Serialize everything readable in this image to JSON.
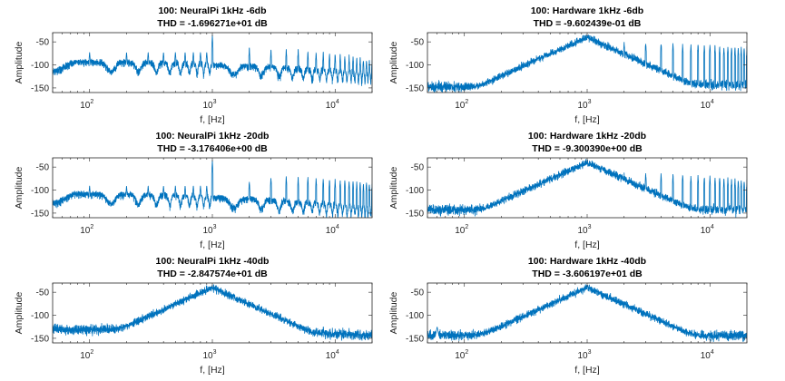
{
  "figure": {
    "background": "#ffffff",
    "trace_color": "#0072bd",
    "axis_color": "#262626"
  },
  "chart_data": [
    {
      "type": "line",
      "title_line1": "100: NeuralPi 1kHz -6db",
      "title_line2": "THD = -1.696271e+01 dB",
      "xlabel": "f, [Hz]",
      "ylabel": "Amplitude",
      "xscale": "log",
      "xlim": [
        50,
        20000
      ],
      "ylim": [
        -160,
        -30
      ],
      "xticks": [
        {
          "label_base": "10",
          "label_exp": "2",
          "value": 100
        },
        {
          "label_base": "10",
          "label_exp": "3",
          "value": 1000
        },
        {
          "label_base": "10",
          "label_exp": "4",
          "value": 10000
        }
      ],
      "yticks": [
        -50,
        -100,
        -150
      ],
      "grid": false,
      "series": [
        {
          "noise_floor_dB": -95,
          "noise_floor_high_freq_dB": -120,
          "floor_shape": "comb",
          "fundamental_hz": 1000,
          "fundamental_dB": -35,
          "harmonics_dB": [
            -62,
            -66,
            -65,
            -68,
            -70,
            -72,
            -72,
            -74,
            -76,
            -78,
            -80,
            -80,
            -82,
            -84,
            -84,
            -86,
            -88,
            -90,
            -90
          ],
          "subharmonic_peaks_dB": -72
        }
      ]
    },
    {
      "type": "line",
      "title_line1": "100: Hardware 1kHz -6db",
      "title_line2": "THD = -9.602439e-01 dB",
      "xlabel": "f, [Hz]",
      "ylabel": "Amplitude",
      "xscale": "log",
      "xlim": [
        50,
        20000
      ],
      "ylim": [
        -160,
        -30
      ],
      "xticks": [
        {
          "label_base": "10",
          "label_exp": "2",
          "value": 100
        },
        {
          "label_base": "10",
          "label_exp": "3",
          "value": 1000
        },
        {
          "label_base": "10",
          "label_exp": "4",
          "value": 10000
        }
      ],
      "yticks": [
        -50,
        -100,
        -150
      ],
      "grid": false,
      "series": [
        {
          "noise_floor_dB": -145,
          "noise_floor_high_freq_dB": -140,
          "floor_shape": "noise",
          "fundamental_hz": 1000,
          "fundamental_dB": -35,
          "harmonics_dB": [
            -50,
            -50,
            -52,
            -52,
            -54,
            -55,
            -55,
            -56,
            -56,
            -58,
            -58,
            -60,
            -60,
            -60,
            -62,
            -62,
            -62,
            -64,
            -64
          ],
          "subharmonic_peaks_dB": null
        }
      ]
    },
    {
      "type": "line",
      "title_line1": "100: NeuralPi 1kHz -20db",
      "title_line2": "THD = -3.176406e+00 dB",
      "xlabel": "f, [Hz]",
      "ylabel": "Amplitude",
      "xscale": "log",
      "xlim": [
        50,
        20000
      ],
      "ylim": [
        -160,
        -30
      ],
      "xticks": [
        {
          "label_base": "10",
          "label_exp": "2",
          "value": 100
        },
        {
          "label_base": "10",
          "label_exp": "3",
          "value": 1000
        },
        {
          "label_base": "10",
          "label_exp": "4",
          "value": 10000
        }
      ],
      "yticks": [
        -50,
        -100,
        -150
      ],
      "grid": false,
      "series": [
        {
          "noise_floor_dB": -110,
          "noise_floor_high_freq_dB": -140,
          "floor_shape": "comb",
          "fundamental_hz": 1000,
          "fundamental_dB": -35,
          "harmonics_dB": [
            -80,
            -72,
            -70,
            -72,
            -72,
            -74,
            -74,
            -76,
            -76,
            -78,
            -78,
            -80,
            -80,
            -82,
            -82,
            -84,
            -84,
            -86,
            -86
          ],
          "subharmonic_peaks_dB": -90
        }
      ]
    },
    {
      "type": "line",
      "title_line1": "100: Hardware 1kHz -20db",
      "title_line2": "THD = -9.300390e+00 dB",
      "xlabel": "f, [Hz]",
      "ylabel": "Amplitude",
      "xscale": "log",
      "xlim": [
        50,
        20000
      ],
      "ylim": [
        -160,
        -30
      ],
      "xticks": [
        {
          "label_base": "10",
          "label_exp": "2",
          "value": 100
        },
        {
          "label_base": "10",
          "label_exp": "3",
          "value": 1000
        },
        {
          "label_base": "10",
          "label_exp": "4",
          "value": 10000
        }
      ],
      "yticks": [
        -50,
        -100,
        -150
      ],
      "grid": false,
      "series": [
        {
          "noise_floor_dB": -140,
          "noise_floor_high_freq_dB": -140,
          "floor_shape": "noise",
          "fundamental_hz": 1000,
          "fundamental_dB": -35,
          "harmonics_dB": [
            -65,
            -62,
            -64,
            -66,
            -66,
            -68,
            -68,
            -70,
            -70,
            -72,
            -72,
            -74,
            -74,
            -76,
            -76,
            -78,
            -78,
            -80,
            -80
          ],
          "subharmonic_peaks_dB": null
        }
      ]
    },
    {
      "type": "line",
      "title_line1": "100: NeuralPi 1kHz -40db",
      "title_line2": "THD = -2.847574e+01 dB",
      "xlabel": "f, [Hz]",
      "ylabel": "Amplitude",
      "xscale": "log",
      "xlim": [
        50,
        20000
      ],
      "ylim": [
        -160,
        -30
      ],
      "xticks": [
        {
          "label_base": "10",
          "label_exp": "2",
          "value": 100
        },
        {
          "label_base": "10",
          "label_exp": "3",
          "value": 1000
        },
        {
          "label_base": "10",
          "label_exp": "4",
          "value": 10000
        }
      ],
      "yticks": [
        -50,
        -100,
        -150
      ],
      "grid": false,
      "series": [
        {
          "noise_floor_dB": -128,
          "noise_floor_high_freq_dB": -142,
          "floor_shape": "noise",
          "fundamental_hz": 1000,
          "fundamental_dB": -35,
          "harmonics_dB": [
            -85,
            -95,
            -118,
            -120,
            -122,
            -125,
            -125,
            -128,
            -128,
            -130,
            -130,
            -130,
            -132,
            -132,
            -132,
            -134,
            -134,
            -135,
            -135
          ],
          "subharmonic_peaks_dB": null
        }
      ]
    },
    {
      "type": "line",
      "title_line1": "100: Hardware 1kHz -40db",
      "title_line2": "THD = -3.606197e+01 dB",
      "xlabel": "f, [Hz]",
      "ylabel": "Amplitude",
      "xscale": "log",
      "xlim": [
        50,
        20000
      ],
      "ylim": [
        -160,
        -30
      ],
      "xticks": [
        {
          "label_base": "10",
          "label_exp": "2",
          "value": 100
        },
        {
          "label_base": "10",
          "label_exp": "3",
          "value": 1000
        },
        {
          "label_base": "10",
          "label_exp": "4",
          "value": 10000
        }
      ],
      "yticks": [
        -50,
        -100,
        -150
      ],
      "grid": false,
      "series": [
        {
          "noise_floor_dB": -140,
          "noise_floor_high_freq_dB": -142,
          "floor_shape": "noise",
          "fundamental_hz": 1000,
          "fundamental_dB": -35,
          "harmonics_dB": [
            -95,
            -130,
            -135,
            -138,
            -138,
            -140,
            -140,
            -140,
            -140,
            -140,
            -140,
            -140,
            -140,
            -140,
            -140,
            -140,
            -140,
            -140,
            -140
          ],
          "subharmonic_peaks_dB": null,
          "extra_peak_hz": 60,
          "extra_peak_dB": -125
        }
      ]
    }
  ]
}
